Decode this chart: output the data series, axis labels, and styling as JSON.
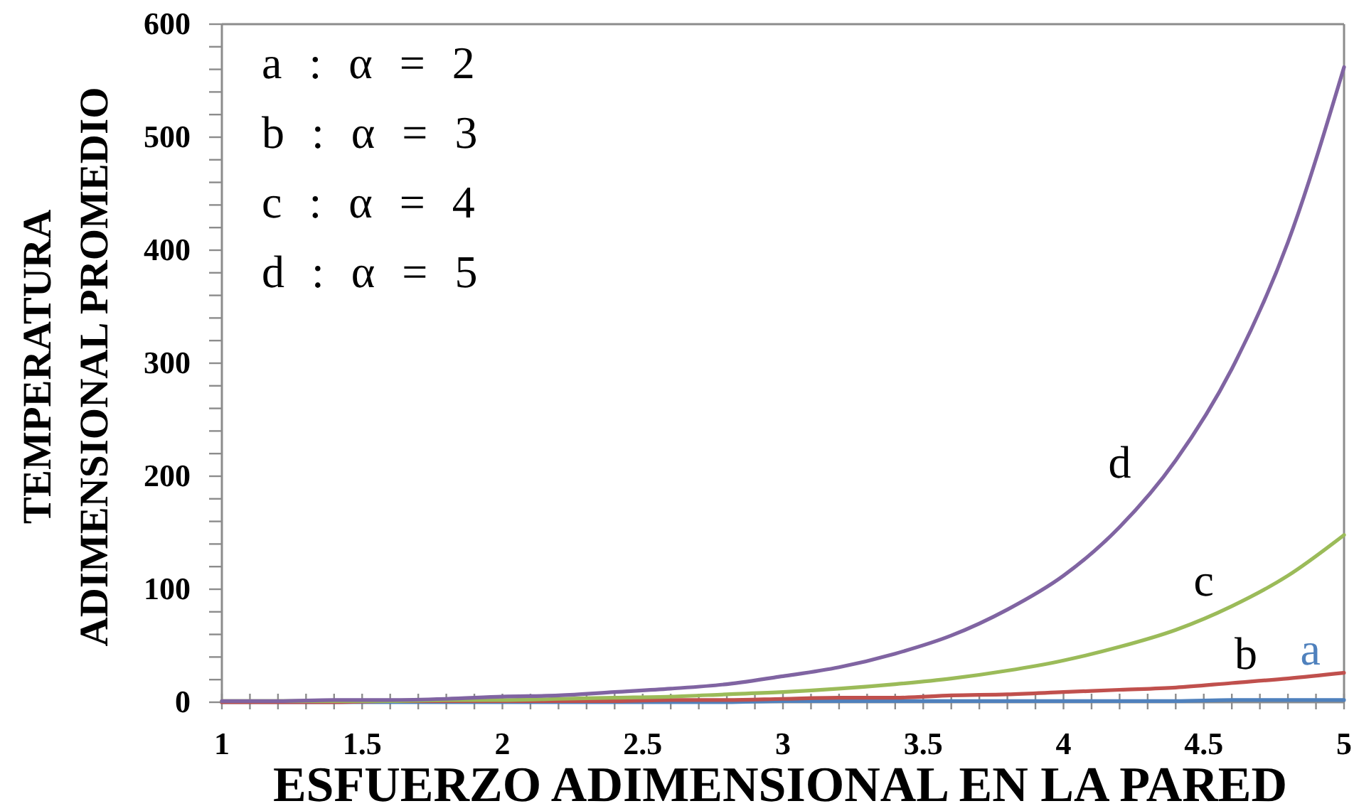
{
  "chart_data": {
    "type": "line",
    "xlabel": "ESFUERZO ADIMENSIONAL EN LA PARED",
    "ylabel": "TEMPERATURA\nADIMENSIONAL PROMEDIO",
    "annotations": [
      "a : α = 2",
      "b : α = 3",
      "c : α = 4",
      "d : α = 5"
    ],
    "x": [
      1,
      1.2,
      1.4,
      1.6,
      1.8,
      2,
      2.2,
      2.4,
      2.6,
      2.8,
      3,
      3.2,
      3.4,
      3.6,
      3.8,
      4,
      4.2,
      4.4,
      4.6,
      4.8,
      5
    ],
    "xlim": [
      1,
      5
    ],
    "xticks": [
      1,
      {
        "value": 1.1,
        "label": null
      },
      {
        "value": 1.2,
        "label": null
      },
      {
        "value": 1.3,
        "label": null
      },
      {
        "value": 1.4,
        "label": null
      },
      1.5,
      {
        "value": 1.6,
        "label": null
      },
      {
        "value": 1.7,
        "label": null
      },
      {
        "value": 1.8,
        "label": null
      },
      {
        "value": 1.9,
        "label": null
      },
      2,
      {
        "value": 2.1,
        "label": null
      },
      {
        "value": 2.2,
        "label": null
      },
      {
        "value": 2.3,
        "label": null
      },
      {
        "value": 2.4,
        "label": null
      },
      2.5,
      {
        "value": 2.6,
        "label": null
      },
      {
        "value": 2.7,
        "label": null
      },
      {
        "value": 2.8,
        "label": null
      },
      {
        "value": 2.9,
        "label": null
      },
      3,
      {
        "value": 3.1,
        "label": null
      },
      {
        "value": 3.2,
        "label": null
      },
      {
        "value": 3.3,
        "label": null
      },
      {
        "value": 3.4,
        "label": null
      },
      3.5,
      {
        "value": 3.6,
        "label": null
      },
      {
        "value": 3.7,
        "label": null
      },
      {
        "value": 3.8,
        "label": null
      },
      {
        "value": 3.9,
        "label": null
      },
      4,
      {
        "value": 4.1,
        "label": null
      },
      {
        "value": 4.2,
        "label": null
      },
      {
        "value": 4.3,
        "label": null
      },
      {
        "value": 4.4,
        "label": null
      },
      4.5,
      {
        "value": 4.6,
        "label": null
      },
      {
        "value": 4.7,
        "label": null
      },
      {
        "value": 4.8,
        "label": null
      },
      {
        "value": 4.9,
        "label": null
      },
      5
    ],
    "ylim": [
      0,
      600
    ],
    "yticks": [
      0,
      {
        "value": 20,
        "label": null
      },
      {
        "value": 40,
        "label": null
      },
      {
        "value": 60,
        "label": null
      },
      {
        "value": 80,
        "label": null
      },
      100,
      {
        "value": 120,
        "label": null
      },
      {
        "value": 140,
        "label": null
      },
      {
        "value": 160,
        "label": null
      },
      {
        "value": 180,
        "label": null
      },
      200,
      {
        "value": 220,
        "label": null
      },
      {
        "value": 240,
        "label": null
      },
      {
        "value": 260,
        "label": null
      },
      {
        "value": 280,
        "label": null
      },
      300,
      {
        "value": 320,
        "label": null
      },
      {
        "value": 340,
        "label": null
      },
      {
        "value": 360,
        "label": null
      },
      {
        "value": 380,
        "label": null
      },
      400,
      {
        "value": 420,
        "label": null
      },
      {
        "value": 440,
        "label": null
      },
      {
        "value": 460,
        "label": null
      },
      {
        "value": 480,
        "label": null
      },
      500,
      {
        "value": 520,
        "label": null
      },
      {
        "value": 540,
        "label": null
      },
      {
        "value": 560,
        "label": null
      },
      {
        "value": 580,
        "label": null
      },
      600
    ],
    "series": [
      {
        "name": "a",
        "color": "#4f81bd",
        "values": [
          0,
          0,
          0,
          0,
          0,
          0,
          0,
          0,
          0,
          0,
          1,
          1,
          1,
          1,
          1,
          1,
          1,
          1,
          2,
          2,
          2
        ]
      },
      {
        "name": "b",
        "color": "#c0504d",
        "values": [
          0,
          0,
          0,
          1,
          1,
          1,
          1,
          1,
          2,
          2,
          3,
          4,
          4,
          6,
          7,
          9,
          11,
          13,
          17,
          21,
          26
        ]
      },
      {
        "name": "c",
        "color": "#9bbb59",
        "values": [
          1,
          1,
          1,
          1,
          2,
          2,
          3,
          4,
          5,
          7,
          9,
          12,
          16,
          21,
          28,
          37,
          49,
          64,
          85,
          112,
          148
        ]
      },
      {
        "name": "d",
        "color": "#8064a2",
        "values": [
          1,
          1,
          2,
          2,
          3,
          5,
          6,
          9,
          12,
          16,
          23,
          31,
          43,
          59,
          82,
          112,
          155,
          214,
          295,
          407,
          562
        ]
      }
    ]
  }
}
